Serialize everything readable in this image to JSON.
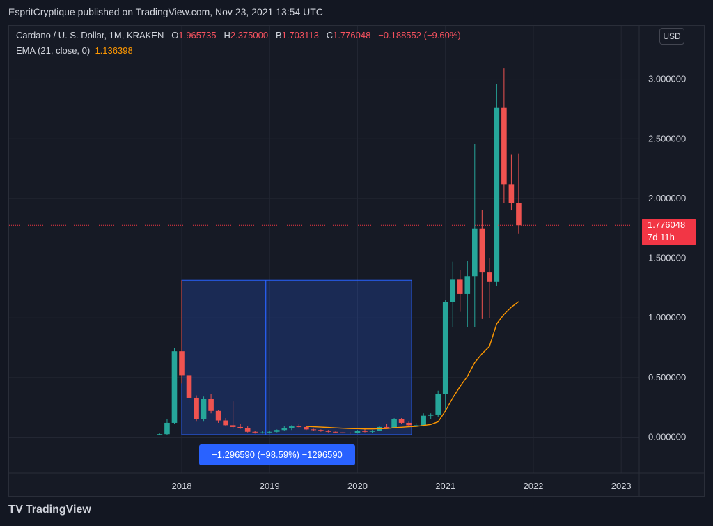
{
  "header": {
    "published": "EspritCryptique published on TradingView.com, Nov 23, 2021 13:54 UTC"
  },
  "legend": {
    "symbol": "Cardano / U. S. Dollar, 1M, KRAKEN",
    "o_key": "O",
    "o_val": "1.965735",
    "h_key": "H",
    "h_val": "2.375000",
    "l_key": "B",
    "l_val": "1.703113",
    "c_key": "C",
    "c_val": "1.776048",
    "change": "−0.188552 (−9.60%)",
    "ema_label": "EMA (21, close, 0)",
    "ema_value": "1.136398"
  },
  "currency": "USD",
  "price_label": {
    "value": "1.776048",
    "countdown": "7d 11h"
  },
  "measure_label": "−1.296590 (−98.59%) −1296590",
  "footer": {
    "brand": "TradingView"
  },
  "colors": {
    "up": "#26a69a",
    "down": "#ef5350",
    "ema": "#ff9800",
    "measure": "#2962ff",
    "bg": "#131722"
  },
  "chart_data": {
    "type": "candlestick",
    "x_start": "2017-10",
    "x_interval": "1M",
    "ylim": [
      -0.3,
      3.2
    ],
    "yticks": [
      "3.000000",
      "2.500000",
      "2.000000",
      "1.500000",
      "1.000000",
      "0.500000",
      "0.000000"
    ],
    "ytick_values": [
      3.0,
      2.5,
      2.0,
      1.5,
      1.0,
      0.5,
      0.0
    ],
    "xticks": [
      {
        "label": "2018",
        "index": 3
      },
      {
        "label": "2019",
        "index": 15
      },
      {
        "label": "2020",
        "index": 27
      },
      {
        "label": "2021",
        "index": 39
      },
      {
        "label": "2022",
        "index": 51
      },
      {
        "label": "2023",
        "index": 63
      }
    ],
    "candles": [
      {
        "o": 0.02,
        "h": 0.03,
        "l": 0.018,
        "c": 0.025
      },
      {
        "o": 0.025,
        "h": 0.15,
        "l": 0.02,
        "c": 0.12
      },
      {
        "o": 0.12,
        "h": 0.75,
        "l": 0.11,
        "c": 0.72
      },
      {
        "o": 0.72,
        "h": 0.75,
        "l": 0.45,
        "c": 0.52
      },
      {
        "o": 0.52,
        "h": 0.55,
        "l": 0.28,
        "c": 0.33
      },
      {
        "o": 0.33,
        "h": 0.35,
        "l": 0.13,
        "c": 0.15
      },
      {
        "o": 0.15,
        "h": 0.34,
        "l": 0.13,
        "c": 0.32
      },
      {
        "o": 0.32,
        "h": 0.36,
        "l": 0.2,
        "c": 0.22
      },
      {
        "o": 0.22,
        "h": 0.23,
        "l": 0.12,
        "c": 0.14
      },
      {
        "o": 0.14,
        "h": 0.16,
        "l": 0.09,
        "c": 0.1
      },
      {
        "o": 0.1,
        "h": 0.3,
        "l": 0.07,
        "c": 0.085
      },
      {
        "o": 0.085,
        "h": 0.11,
        "l": 0.07,
        "c": 0.075
      },
      {
        "o": 0.075,
        "h": 0.09,
        "l": 0.04,
        "c": 0.045
      },
      {
        "o": 0.045,
        "h": 0.05,
        "l": 0.03,
        "c": 0.04
      },
      {
        "o": 0.04,
        "h": 0.05,
        "l": 0.03,
        "c": 0.04
      },
      {
        "o": 0.04,
        "h": 0.055,
        "l": 0.03,
        "c": 0.045
      },
      {
        "o": 0.045,
        "h": 0.065,
        "l": 0.04,
        "c": 0.06
      },
      {
        "o": 0.06,
        "h": 0.095,
        "l": 0.055,
        "c": 0.075
      },
      {
        "o": 0.075,
        "h": 0.1,
        "l": 0.06,
        "c": 0.09
      },
      {
        "o": 0.09,
        "h": 0.11,
        "l": 0.08,
        "c": 0.085
      },
      {
        "o": 0.085,
        "h": 0.09,
        "l": 0.06,
        "c": 0.065
      },
      {
        "o": 0.065,
        "h": 0.07,
        "l": 0.05,
        "c": 0.06
      },
      {
        "o": 0.06,
        "h": 0.065,
        "l": 0.045,
        "c": 0.055
      },
      {
        "o": 0.055,
        "h": 0.06,
        "l": 0.04,
        "c": 0.045
      },
      {
        "o": 0.045,
        "h": 0.048,
        "l": 0.035,
        "c": 0.04
      },
      {
        "o": 0.04,
        "h": 0.045,
        "l": 0.03,
        "c": 0.038
      },
      {
        "o": 0.038,
        "h": 0.04,
        "l": 0.03,
        "c": 0.033
      },
      {
        "o": 0.033,
        "h": 0.06,
        "l": 0.03,
        "c": 0.055
      },
      {
        "o": 0.055,
        "h": 0.07,
        "l": 0.04,
        "c": 0.045
      },
      {
        "o": 0.045,
        "h": 0.06,
        "l": 0.035,
        "c": 0.055
      },
      {
        "o": 0.055,
        "h": 0.09,
        "l": 0.05,
        "c": 0.085
      },
      {
        "o": 0.085,
        "h": 0.11,
        "l": 0.07,
        "c": 0.08
      },
      {
        "o": 0.08,
        "h": 0.16,
        "l": 0.075,
        "c": 0.15
      },
      {
        "o": 0.15,
        "h": 0.16,
        "l": 0.11,
        "c": 0.12
      },
      {
        "o": 0.12,
        "h": 0.13,
        "l": 0.09,
        "c": 0.1
      },
      {
        "o": 0.1,
        "h": 0.12,
        "l": 0.09,
        "c": 0.1
      },
      {
        "o": 0.1,
        "h": 0.2,
        "l": 0.09,
        "c": 0.18
      },
      {
        "o": 0.18,
        "h": 0.2,
        "l": 0.15,
        "c": 0.19
      },
      {
        "o": 0.19,
        "h": 0.39,
        "l": 0.17,
        "c": 0.36
      },
      {
        "o": 0.36,
        "h": 1.15,
        "l": 0.21,
        "c": 1.13
      },
      {
        "o": 1.13,
        "h": 1.47,
        "l": 0.92,
        "c": 1.32
      },
      {
        "o": 1.32,
        "h": 1.4,
        "l": 1.05,
        "c": 1.2
      },
      {
        "o": 1.2,
        "h": 1.48,
        "l": 0.92,
        "c": 1.35
      },
      {
        "o": 1.35,
        "h": 2.46,
        "l": 0.92,
        "c": 1.75
      },
      {
        "o": 1.75,
        "h": 1.9,
        "l": 0.99,
        "c": 1.38
      },
      {
        "o": 1.38,
        "h": 1.5,
        "l": 1.0,
        "c": 1.3
      },
      {
        "o": 1.3,
        "h": 2.96,
        "l": 1.27,
        "c": 2.76
      },
      {
        "o": 2.76,
        "h": 3.09,
        "l": 1.96,
        "c": 2.12
      },
      {
        "o": 2.12,
        "h": 2.37,
        "l": 1.9,
        "c": 1.96
      },
      {
        "o": 1.96,
        "h": 2.375,
        "l": 1.703,
        "c": 1.776
      }
    ],
    "ema_start_index": 20,
    "ema": [
      0.09,
      0.087,
      0.084,
      0.081,
      0.078,
      0.075,
      0.072,
      0.071,
      0.069,
      0.069,
      0.071,
      0.072,
      0.079,
      0.083,
      0.087,
      0.09,
      0.098,
      0.106,
      0.129,
      0.22,
      0.33,
      0.425,
      0.51,
      0.625,
      0.7,
      0.76,
      0.95,
      1.03,
      1.09,
      1.136
    ],
    "measure": {
      "start_index": 3,
      "end_index": 34,
      "from_price": 1.315,
      "to_price": 0.02,
      "mid_index": 14
    },
    "last_price": 1.776048
  }
}
